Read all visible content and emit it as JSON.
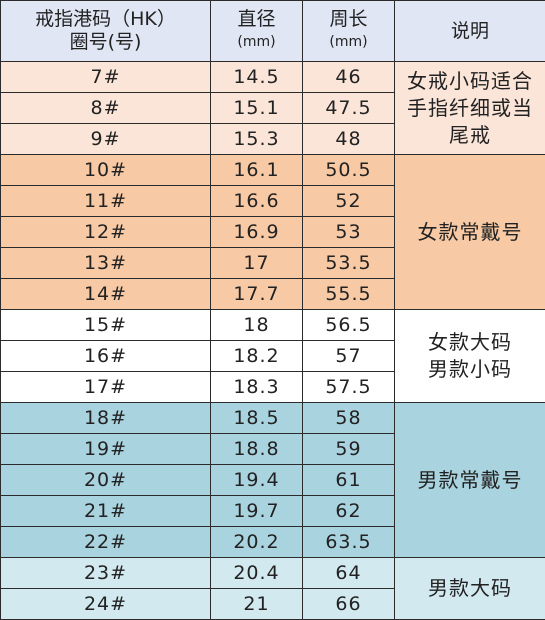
{
  "header": {
    "col1_line1": "戒指港码（HK）",
    "col1_line2": "圈号(号)",
    "col2_line1": "直径",
    "col2_line2": "(mm)",
    "col3_line1": "周长",
    "col3_line2": "(mm)",
    "col4": "说明"
  },
  "groups": [
    {
      "color": "#fbe5d9",
      "desc_lines": [
        "女戒小码适合",
        "手指纤细或当",
        "尾戒"
      ]
    },
    {
      "color": "#f7c9a4",
      "desc_lines": [
        "女款常戴号"
      ]
    },
    {
      "color": "#ffffff",
      "desc_lines": [
        "女款大码",
        "男款小码"
      ]
    },
    {
      "color": "#a9d3df",
      "desc_lines": [
        "男款常戴号"
      ]
    },
    {
      "color": "#d2e9f0",
      "desc_lines": [
        "男款大码"
      ]
    }
  ],
  "rows": [
    {
      "size": "7#",
      "diameter": "14.5",
      "circumference": "46"
    },
    {
      "size": "8#",
      "diameter": "15.1",
      "circumference": "47.5"
    },
    {
      "size": "9#",
      "diameter": "15.3",
      "circumference": "48"
    },
    {
      "size": "10#",
      "diameter": "16.1",
      "circumference": "50.5"
    },
    {
      "size": "11#",
      "diameter": "16.6",
      "circumference": "52"
    },
    {
      "size": "12#",
      "diameter": "16.9",
      "circumference": "53"
    },
    {
      "size": "13#",
      "diameter": "17",
      "circumference": "53.5"
    },
    {
      "size": "14#",
      "diameter": "17.7",
      "circumference": "55.5"
    },
    {
      "size": "15#",
      "diameter": "18",
      "circumference": "56.5"
    },
    {
      "size": "16#",
      "diameter": "18.2",
      "circumference": "57"
    },
    {
      "size": "17#",
      "diameter": "18.3",
      "circumference": "57.5"
    },
    {
      "size": "18#",
      "diameter": "18.5",
      "circumference": "58"
    },
    {
      "size": "19#",
      "diameter": "18.8",
      "circumference": "59"
    },
    {
      "size": "20#",
      "diameter": "19.4",
      "circumference": "61"
    },
    {
      "size": "21#",
      "diameter": "19.7",
      "circumference": "62"
    },
    {
      "size": "22#",
      "diameter": "20.2",
      "circumference": "63.5"
    },
    {
      "size": "23#",
      "diameter": "20.4",
      "circumference": "64"
    },
    {
      "size": "24#",
      "diameter": "21",
      "circumference": "66"
    }
  ]
}
